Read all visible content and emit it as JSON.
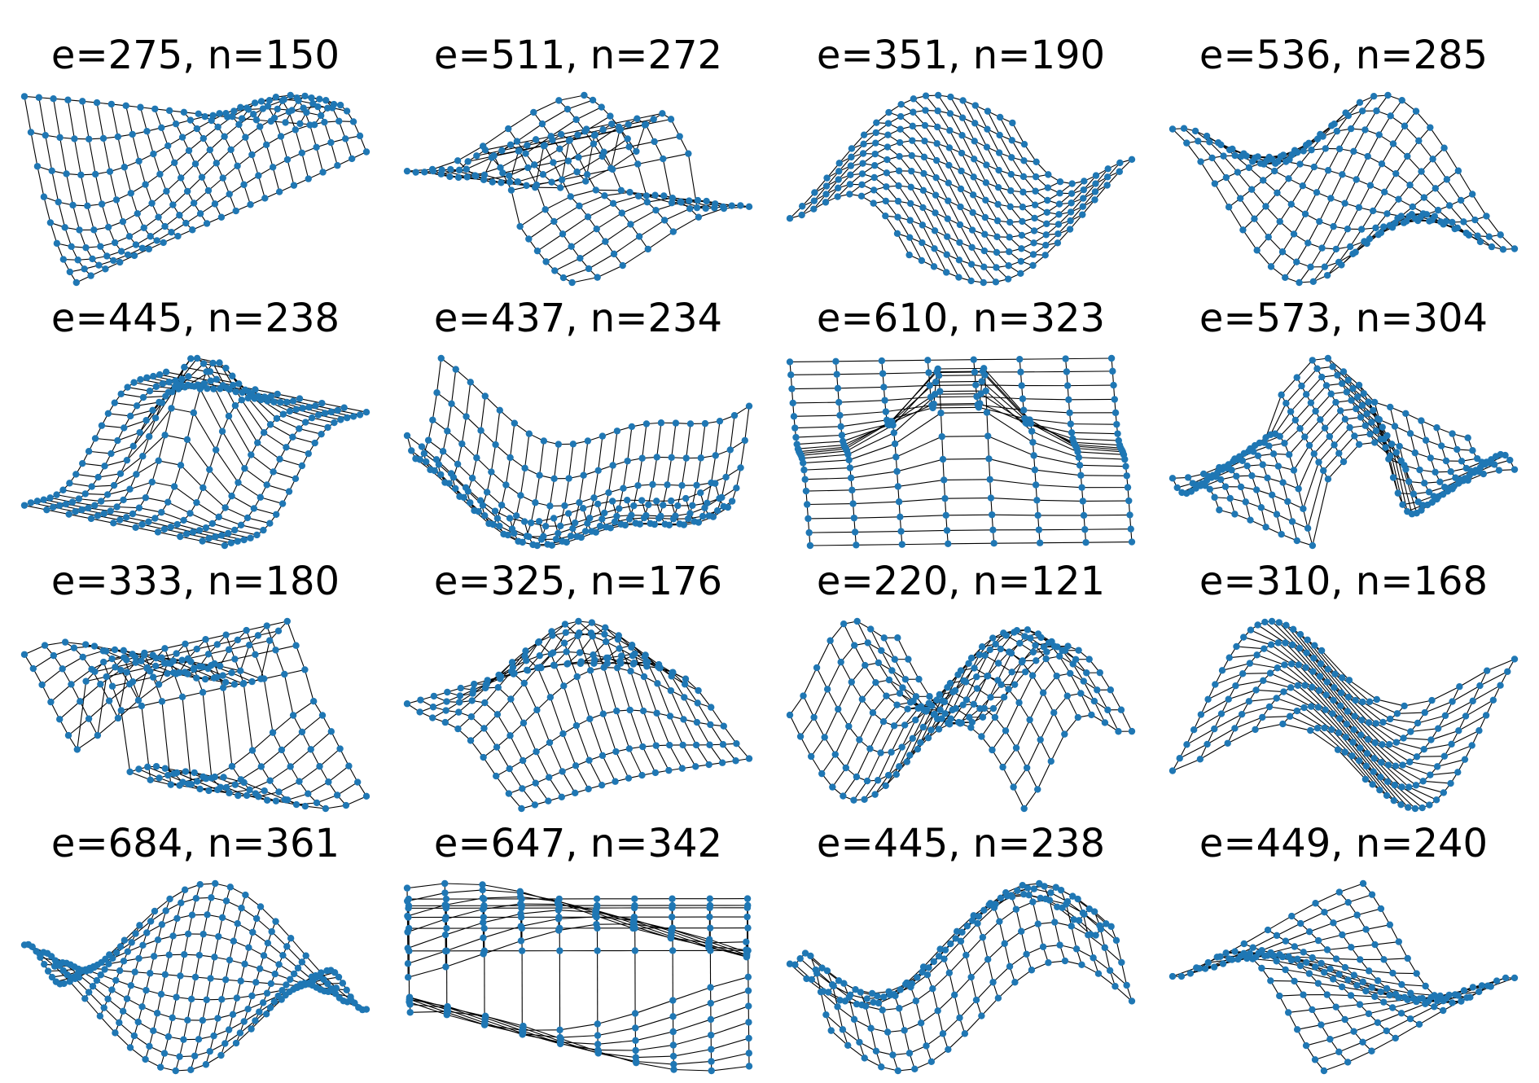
{
  "panels": [
    {
      "title": "e=275, n=150",
      "seed": 1,
      "shape": "sheet"
    },
    {
      "title": "e=511, n=272",
      "seed": 2,
      "shape": "fold"
    },
    {
      "title": "e=351, n=190",
      "seed": 3,
      "shape": "twist"
    },
    {
      "title": "e=536, n=285",
      "seed": 4,
      "shape": "roll"
    },
    {
      "title": "e=445, n=238",
      "seed": 5,
      "shape": "star"
    },
    {
      "title": "e=437, n=234",
      "seed": 6,
      "shape": "bowl"
    },
    {
      "title": "e=610, n=323",
      "seed": 7,
      "shape": "star"
    },
    {
      "title": "e=573, n=304",
      "seed": 8,
      "shape": "fold"
    },
    {
      "title": "e=333, n=180",
      "seed": 9,
      "shape": "fold"
    },
    {
      "title": "e=325, n=176",
      "seed": 10,
      "shape": "dome"
    },
    {
      "title": "e=220, n=121",
      "seed": 11,
      "shape": "wave"
    },
    {
      "title": "e=310, n=168",
      "seed": 12,
      "shape": "twist"
    },
    {
      "title": "e=684, n=361",
      "seed": 13,
      "shape": "roll"
    },
    {
      "title": "e=647, n=342",
      "seed": 14,
      "shape": "fold"
    },
    {
      "title": "e=445, n=238",
      "seed": 15,
      "shape": "wave"
    },
    {
      "title": "e=449, n=240",
      "seed": 16,
      "shape": "roll"
    }
  ],
  "colors": {
    "node": "#1f77b4",
    "edge": "#000000",
    "background": "#ffffff"
  }
}
